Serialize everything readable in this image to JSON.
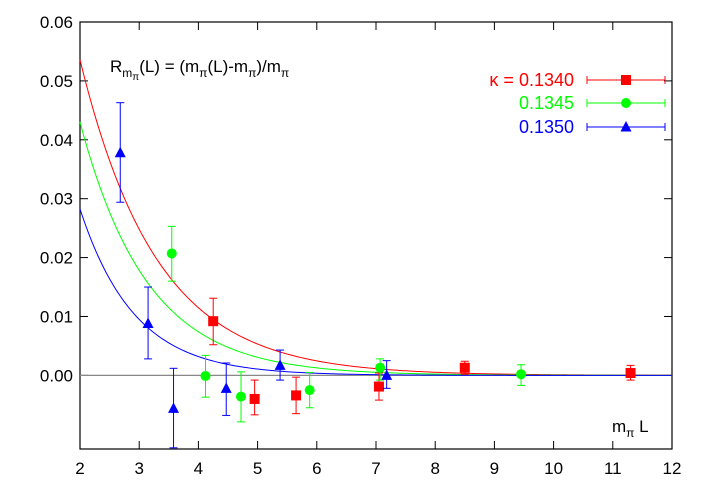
{
  "chart_data": {
    "type": "scatter",
    "xlim": [
      2,
      12
    ],
    "ylim": [
      -0.0125,
      0.06
    ],
    "x_ticks": [
      "2",
      "3",
      "4",
      "5",
      "6",
      "7",
      "8",
      "9",
      "10",
      "11",
      "12"
    ],
    "y_ticks": [
      "0.06",
      "0.05",
      "0.04",
      "0.03",
      "0.02",
      "0.01",
      "0.00"
    ],
    "y_tick_values": [
      0.06,
      0.05,
      0.04,
      0.03,
      0.02,
      0.01,
      0.0
    ],
    "xlabel": {
      "main": "m",
      "sub": "π",
      "tail": " L"
    },
    "formula": {
      "r": "R",
      "r_sub": "m",
      "r_subsub": "π",
      "p1": "(L) = (m",
      "s1": "π",
      "p2": "(L)-m",
      "s2": "π",
      "p3": ")/m",
      "s3": "π"
    },
    "grid": false,
    "zero_line": true,
    "legend_position": "top-right",
    "kappa_symbol": "κ = ",
    "series": [
      {
        "name": "0.1340",
        "color": "#ff0000",
        "marker": "square",
        "points": [
          {
            "x": 4.25,
            "y": 0.0092,
            "lo": 0.0052,
            "hi": 0.0131
          },
          {
            "x": 4.95,
            "y": -0.004,
            "lo": -0.0067,
            "hi": -0.0008
          },
          {
            "x": 5.65,
            "y": -0.0034,
            "lo": -0.0065,
            "hi": -0.0003
          },
          {
            "x": 7.05,
            "y": -0.0019,
            "lo": -0.0042,
            "hi": 0.0004
          },
          {
            "x": 8.5,
            "y": 0.0013,
            "lo": 0.0002,
            "hi": 0.0024
          },
          {
            "x": 11.3,
            "y": 0.0004,
            "lo": -0.0008,
            "hi": 0.0017
          }
        ],
        "fit": {
          "a": 0.25,
          "b": 0.77
        }
      },
      {
        "name": "0.1345",
        "color": "#00ff00",
        "marker": "circle",
        "points": [
          {
            "x": 3.55,
            "y": 0.0207,
            "lo": 0.016,
            "hi": 0.0253
          },
          {
            "x": 4.12,
            "y": -0.0001,
            "lo": -0.0037,
            "hi": 0.0034
          },
          {
            "x": 4.72,
            "y": -0.0036,
            "lo": -0.0079,
            "hi": 0.0006
          },
          {
            "x": 5.88,
            "y": -0.0025,
            "lo": -0.0055,
            "hi": 0.0005
          },
          {
            "x": 7.07,
            "y": 0.0013,
            "lo": -0.0008,
            "hi": 0.0028
          },
          {
            "x": 9.45,
            "y": 0.0002,
            "lo": -0.0017,
            "hi": 0.0018
          }
        ],
        "fit": {
          "a": 0.25,
          "b": 0.88
        }
      },
      {
        "name": "0.1350",
        "color": "#0000ff",
        "marker": "triangle",
        "points": [
          {
            "x": 2.68,
            "y": 0.0378,
            "lo": 0.0294,
            "hi": 0.0463
          },
          {
            "x": 3.15,
            "y": 0.0088,
            "lo": 0.0028,
            "hi": 0.015
          },
          {
            "x": 3.58,
            "y": -0.0056,
            "lo": -0.0123,
            "hi": 0.0012
          },
          {
            "x": 4.47,
            "y": -0.0022,
            "lo": -0.0068,
            "hi": 0.0021
          },
          {
            "x": 5.38,
            "y": 0.0017,
            "lo": -0.0008,
            "hi": 0.0043
          },
          {
            "x": 7.18,
            "y": 0.0,
            "lo": -0.0022,
            "hi": 0.0025
          }
        ],
        "fit": {
          "a": 0.25,
          "b": 1.09
        }
      }
    ]
  }
}
